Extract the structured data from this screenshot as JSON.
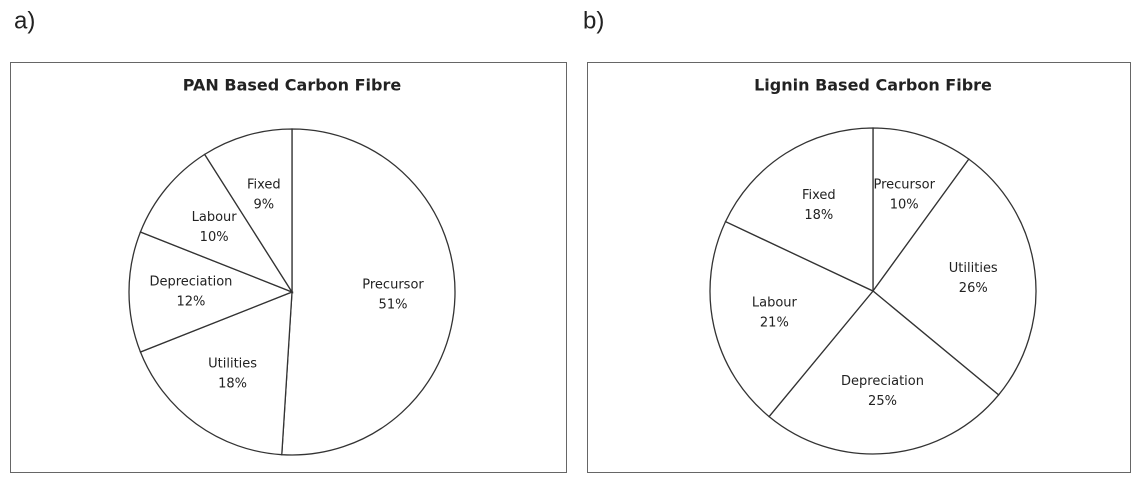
{
  "chart_data": [
    {
      "type": "pie",
      "panel": "a)",
      "title": "PAN Based Carbon Fibre",
      "categories": [
        "Precursor",
        "Utilities",
        "Depreciation",
        "Labour",
        "Fixed"
      ],
      "values": [
        51,
        18,
        12,
        10,
        9
      ],
      "value_labels": [
        "51%",
        "18%",
        "12%",
        "10%",
        "9%"
      ],
      "color": "#ffffff"
    },
    {
      "type": "pie",
      "panel": "b)",
      "title": "Lignin Based Carbon Fibre",
      "categories": [
        "Precursor",
        "Utilities",
        "Depreciation",
        "Labour",
        "Fixed"
      ],
      "values": [
        10,
        26,
        25,
        21,
        18
      ],
      "value_labels": [
        "10%",
        "26%",
        "25%",
        "21%",
        "18%"
      ],
      "color": "#ffffff"
    }
  ]
}
